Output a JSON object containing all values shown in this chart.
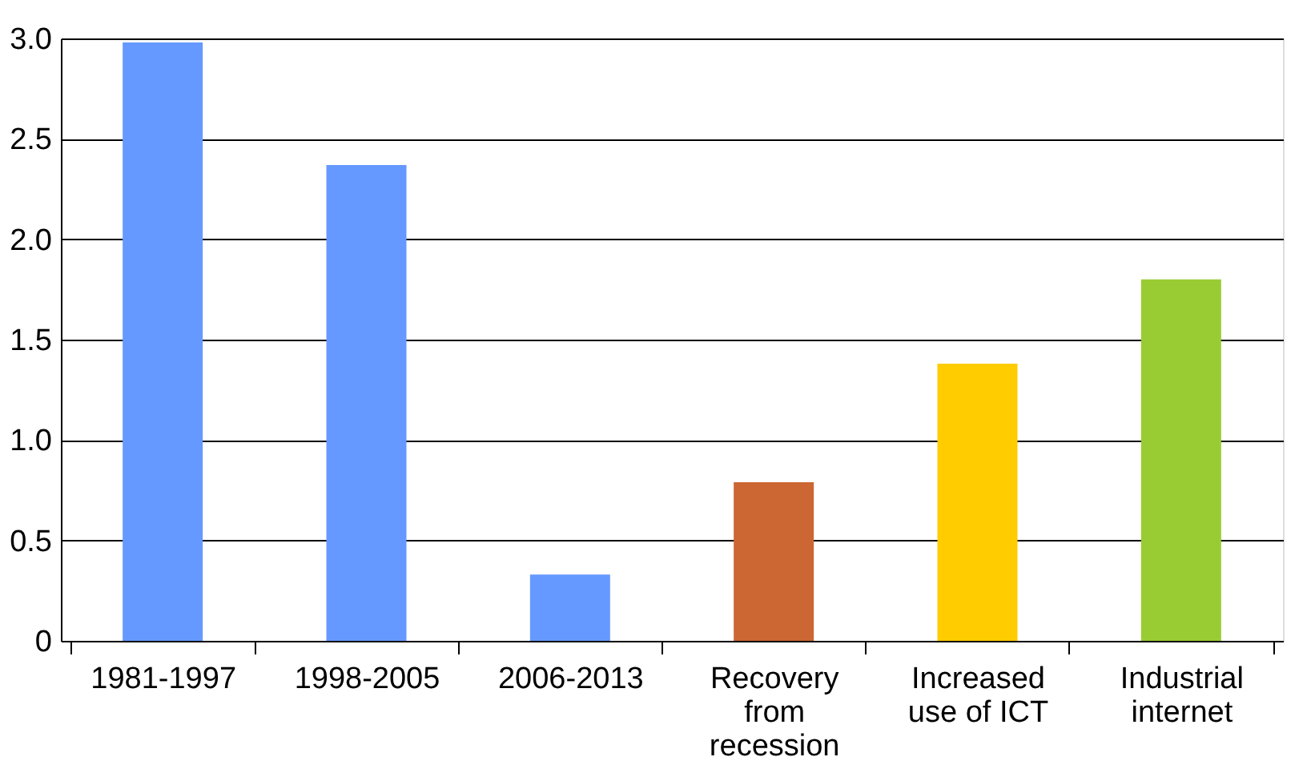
{
  "chart_data": {
    "type": "bar",
    "categories": [
      "1981-1997",
      "1998-2005",
      "2006-2013",
      "Recovery from recession",
      "Increased use of ICT",
      "Industrial internet"
    ],
    "values": [
      2.98,
      2.37,
      0.33,
      0.79,
      1.38,
      1.8
    ],
    "colors": [
      "#6699ff",
      "#6699ff",
      "#6699ff",
      "#cc6633",
      "#ffcc00",
      "#99cc33"
    ],
    "ylim": [
      0,
      3
    ],
    "yticks": [
      0,
      0.5,
      {
        "value": 1,
        "label": "1.0"
      },
      1.5,
      {
        "value": 2,
        "label": "2.0"
      },
      2.5,
      {
        "value": 3,
        "label": "3.0"
      }
    ],
    "grid": "y"
  }
}
